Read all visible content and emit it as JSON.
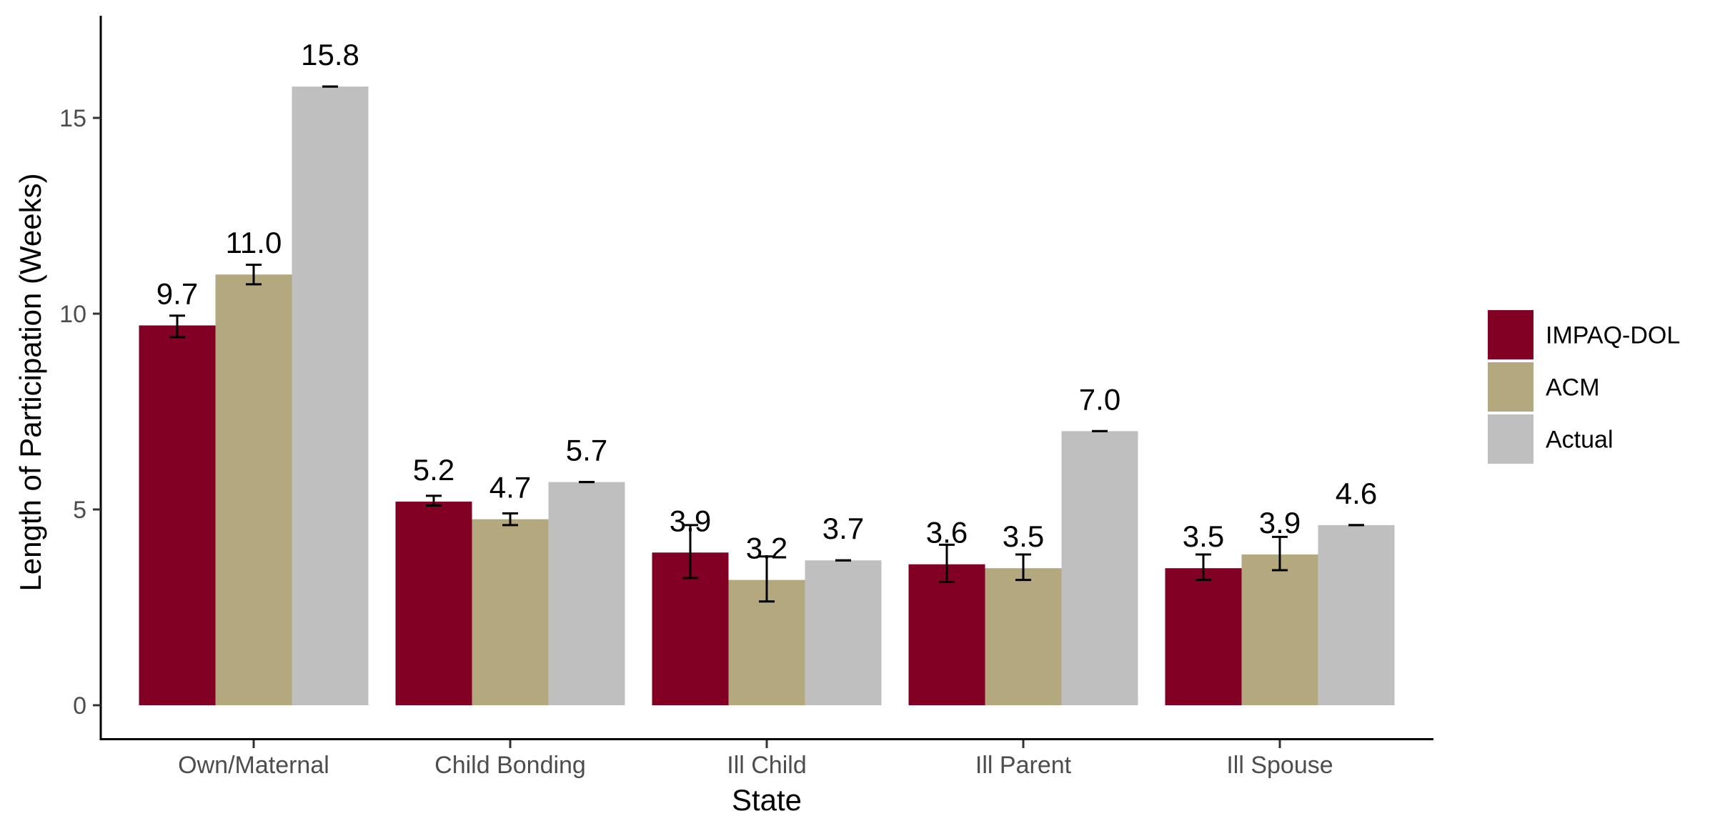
{
  "chart_data": {
    "type": "bar",
    "title": "",
    "xlabel": "State",
    "ylabel": "Length of Participation (Weeks)",
    "ylim": [
      0,
      17.6
    ],
    "yticks": [
      0,
      5,
      10,
      15
    ],
    "categories": [
      "Own/Maternal",
      "Child Bonding",
      "Ill Child",
      "Ill Parent",
      "Ill Spouse"
    ],
    "series": [
      {
        "name": "IMPAQ-DOL",
        "color": "#820024",
        "values": [
          9.7,
          5.2,
          3.9,
          3.6,
          3.5
        ],
        "labels": [
          "9.7",
          "5.2",
          "3.9",
          "3.6",
          "3.5"
        ],
        "err_low": [
          9.4,
          5.1,
          3.25,
          3.15,
          3.2
        ],
        "err_high": [
          9.95,
          5.35,
          4.6,
          4.1,
          3.85
        ]
      },
      {
        "name": "ACM",
        "color": "#b3a87e",
        "values": [
          11.0,
          4.75,
          3.2,
          3.5,
          3.85
        ],
        "labels": [
          "11.0",
          "4.7",
          "3.2",
          "3.5",
          "3.9"
        ],
        "err_low": [
          10.75,
          4.6,
          2.65,
          3.2,
          3.45
        ],
        "err_high": [
          11.25,
          4.9,
          3.8,
          3.85,
          4.3
        ]
      },
      {
        "name": "Actual",
        "color": "#bfbfbf",
        "values": [
          15.8,
          5.7,
          3.7,
          7.0,
          4.6
        ],
        "labels": [
          "15.8",
          "5.7",
          "3.7",
          "7.0",
          "4.6"
        ],
        "err_low": [
          15.8,
          5.7,
          3.7,
          7.0,
          4.6
        ],
        "err_high": [
          15.8,
          5.7,
          3.7,
          7.0,
          4.6
        ]
      }
    ],
    "legend_position": "right",
    "grid": false
  }
}
